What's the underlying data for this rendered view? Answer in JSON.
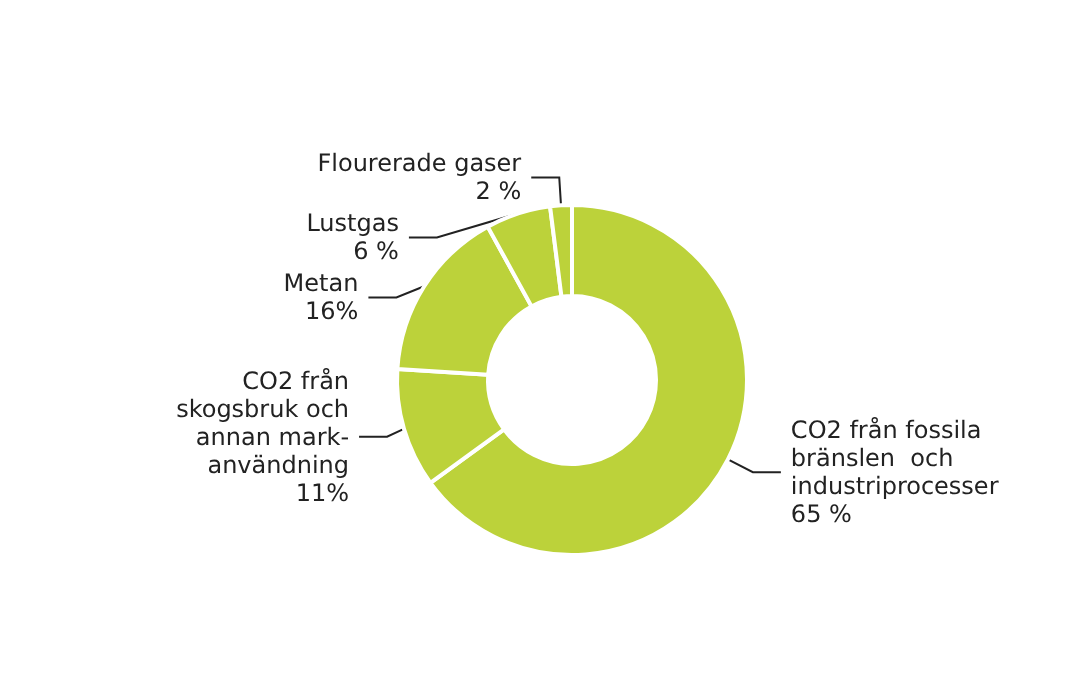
{
  "chart_data": {
    "type": "donut",
    "categories": [
      "CO2 från fossila\nbränslen  och\nindustriprocesser",
      "CO2 från\nskogsbruk och\nannan mark-\nanvändning",
      "Metan",
      "Lustgas",
      "Flourerade gaser"
    ],
    "values": [
      65,
      11,
      16,
      6,
      2
    ],
    "value_labels": [
      "65 %",
      "11%",
      "16%",
      "6 %",
      "2 %"
    ],
    "colors": [
      "#bcd23a",
      "#bcd23a",
      "#bcd23a",
      "#bcd23a",
      "#bcd23a"
    ],
    "legend": false
  }
}
